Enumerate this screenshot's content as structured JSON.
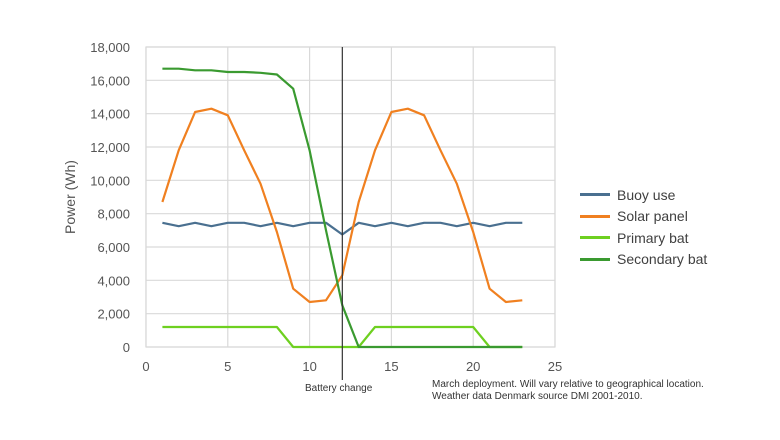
{
  "chart_data": {
    "type": "line",
    "title": "",
    "xlabel": "",
    "ylabel": "Power (Wh)",
    "xlim": [
      0,
      25
    ],
    "ylim": [
      0,
      18000
    ],
    "xticks": [
      0,
      5,
      10,
      15,
      20,
      25
    ],
    "yticks": [
      0,
      2000,
      4000,
      6000,
      8000,
      10000,
      12000,
      14000,
      16000,
      18000
    ],
    "ytick_labels": [
      "0",
      "2,000",
      "4,000",
      "6,000",
      "8,000",
      "10,000",
      "12,000",
      "14,000",
      "16,000",
      "18,000"
    ],
    "grid": true,
    "legend_position": "right",
    "x": [
      1,
      2,
      3,
      4,
      5,
      6,
      7,
      8,
      9,
      10,
      11,
      12,
      13,
      14,
      15,
      16,
      17,
      18,
      19,
      20,
      21,
      22,
      23
    ],
    "series": [
      {
        "name": "Buoy use",
        "color": "#4a7090",
        "values": [
          7450,
          7250,
          7450,
          7250,
          7450,
          7450,
          7250,
          7450,
          7250,
          7450,
          7450,
          6750,
          7450,
          7250,
          7450,
          7250,
          7450,
          7450,
          7250,
          7450,
          7250,
          7450,
          7450
        ]
      },
      {
        "name": "Solar panel",
        "color": "#f08020",
        "values": [
          8700,
          11800,
          14100,
          14300,
          13900,
          11800,
          9800,
          6900,
          3500,
          2700,
          2800,
          4300,
          8700,
          11800,
          14100,
          14300,
          13900,
          11800,
          9800,
          6900,
          3500,
          2700,
          2800
        ]
      },
      {
        "name": "Primary bat",
        "color": "#6ed020",
        "values": [
          1200,
          1200,
          1200,
          1200,
          1200,
          1200,
          1200,
          1200,
          0,
          0,
          0,
          0,
          0,
          1200,
          1200,
          1200,
          1200,
          1200,
          1200,
          1200,
          0,
          0,
          0
        ]
      },
      {
        "name": "Secondary bat",
        "color": "#3a9a30",
        "values": [
          16700,
          16700,
          16600,
          16600,
          16500,
          16500,
          16450,
          16350,
          15500,
          11800,
          7000,
          2500,
          0,
          0,
          0,
          0,
          0,
          0,
          0,
          0,
          0,
          0,
          0
        ]
      }
    ],
    "annotations": [
      {
        "type": "vline",
        "x": 12,
        "label": "Battery change"
      },
      {
        "type": "note",
        "text": "March deployment. Will vary relative to geographical location. Weather data Denmark source DMI 2001-2010."
      }
    ]
  },
  "annotations": {
    "battery_change": "Battery change",
    "note_line1": "March deployment. Will vary relative to geographical location.",
    "note_line2": "Weather data Denmark source DMI 2001-2010."
  }
}
